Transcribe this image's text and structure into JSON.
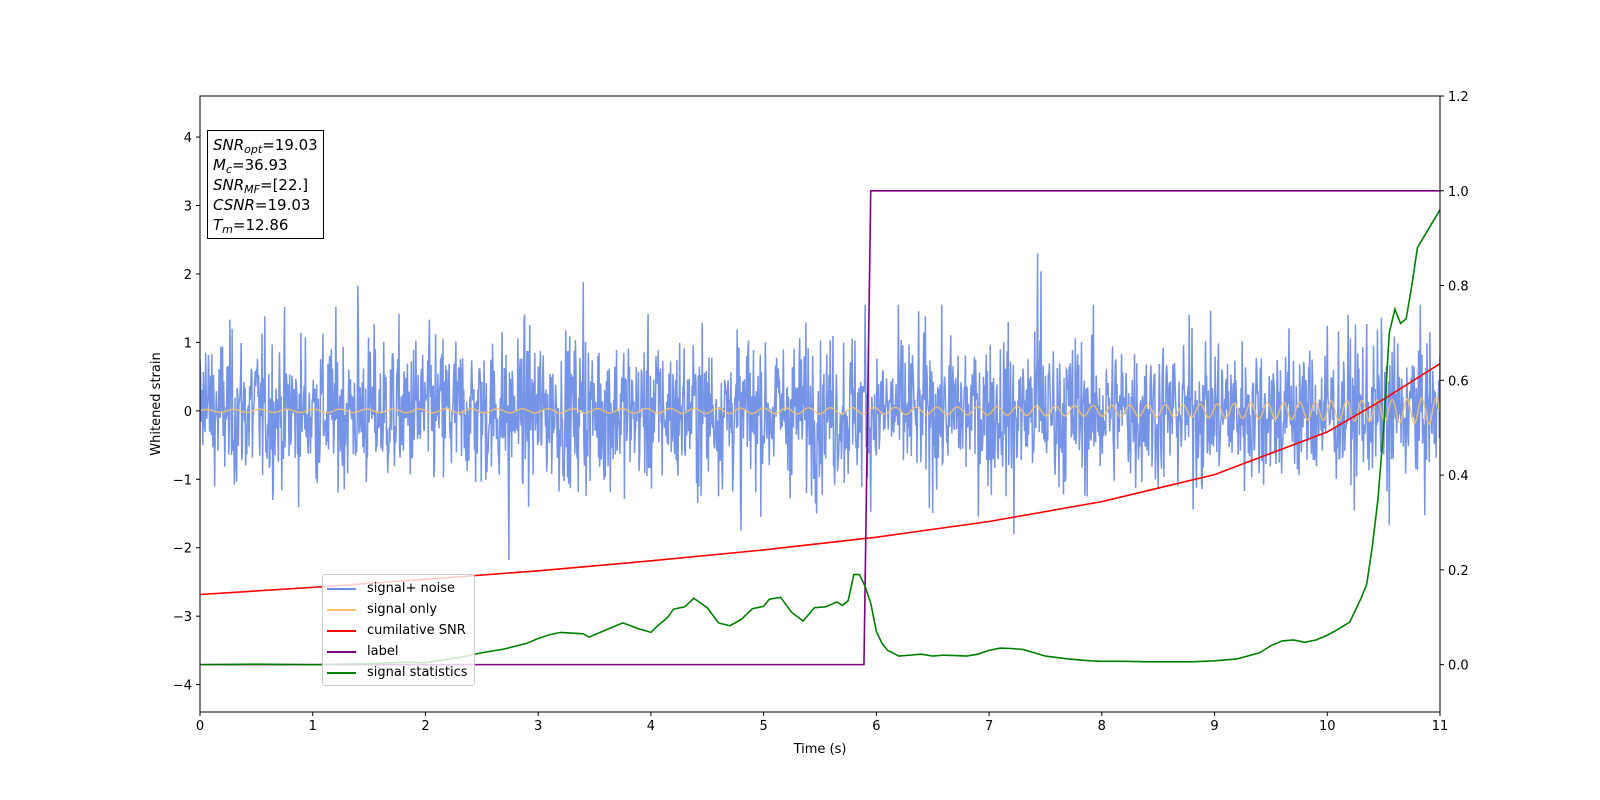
{
  "chart_data": {
    "type": "line",
    "xlabel": "Time (s)",
    "ylabel": "Whitened strain",
    "xlim": [
      0,
      11
    ],
    "ylim_left": [
      -4.4,
      4.6
    ],
    "ylim_right": [
      -0.1,
      1.2
    ],
    "x_ticks": [
      "0",
      "1",
      "2",
      "3",
      "4",
      "5",
      "6",
      "7",
      "8",
      "9",
      "10",
      "11"
    ],
    "y_ticks_left": [
      "−4",
      "−3",
      "−2",
      "−1",
      "0",
      "1",
      "2",
      "3",
      "4"
    ],
    "y_ticks_right": [
      "0.0",
      "0.2",
      "0.4",
      "0.6",
      "0.8",
      "1.0",
      "1.2"
    ],
    "y_tick_values_left": [
      -4,
      -3,
      -2,
      -1,
      0,
      1,
      2,
      3,
      4
    ],
    "y_tick_values_right": [
      0.0,
      0.2,
      0.4,
      0.6,
      0.8,
      1.0,
      1.2
    ],
    "annotations": {
      "snr_opt": "19.03",
      "mc": "36.93",
      "snr_mf": "[22.]",
      "csnr": "19.03",
      "tm": "12.86"
    },
    "series": [
      {
        "name": "signal+ noise",
        "color": "#6f8ee6",
        "axis": "left",
        "description_values": {
          "noise_std_approx": 0.55,
          "range": [
            -2.2,
            2.3
          ]
        },
        "extreme_points": [
          [
            0.05,
            0.85
          ],
          [
            1.4,
            1.83
          ],
          [
            2.74,
            -2.18
          ],
          [
            3.4,
            1.88
          ],
          [
            4.8,
            -1.75
          ],
          [
            5.9,
            1.55
          ],
          [
            7.43,
            2.3
          ],
          [
            7.46,
            2.04
          ],
          [
            7.22,
            -1.8
          ],
          [
            10.55,
            -1.67
          ]
        ]
      },
      {
        "name": "signal only",
        "color": "#f5c26b",
        "axis": "left",
        "x": [
          0,
          1,
          2,
          3,
          4,
          5,
          6,
          7,
          8,
          9,
          9.5,
          10,
          10.5,
          11
        ],
        "amplitude": [
          0.02,
          0.025,
          0.028,
          0.03,
          0.035,
          0.04,
          0.05,
          0.06,
          0.08,
          0.1,
          0.12,
          0.14,
          0.16,
          0.2
        ]
      },
      {
        "name": "cumilative SNR",
        "color": "#ff0000",
        "axis": "right",
        "x": [
          0,
          1,
          2,
          3,
          4,
          5,
          6,
          7,
          8,
          9,
          10,
          10.5,
          11
        ],
        "y": [
          0.148,
          0.163,
          0.18,
          0.198,
          0.219,
          0.242,
          0.269,
          0.302,
          0.344,
          0.401,
          0.491,
          0.56,
          0.635
        ]
      },
      {
        "name": "label",
        "color": "#800080",
        "axis": "right",
        "x": [
          0,
          5.89,
          5.95,
          11
        ],
        "y": [
          0.0,
          0.0,
          1.0,
          1.0
        ]
      },
      {
        "name": "signal statistics",
        "color": "#008000",
        "axis": "right",
        "x": [
          0,
          0.5,
          1,
          1.5,
          1.8,
          2,
          2.3,
          2.5,
          2.7,
          2.9,
          3.0,
          3.1,
          3.2,
          3.4,
          3.45,
          3.6,
          3.75,
          3.9,
          4.0,
          4.05,
          4.15,
          4.2,
          4.3,
          4.38,
          4.5,
          4.6,
          4.7,
          4.8,
          4.9,
          5.0,
          5.05,
          5.15,
          5.25,
          5.35,
          5.45,
          5.55,
          5.65,
          5.7,
          5.75,
          5.8,
          5.85,
          5.9,
          5.95,
          6.0,
          6.05,
          6.1,
          6.2,
          6.3,
          6.4,
          6.5,
          6.6,
          6.7,
          6.8,
          6.9,
          7.0,
          7.1,
          7.2,
          7.3,
          7.4,
          7.5,
          7.7,
          7.9,
          8.0,
          8.2,
          8.4,
          8.6,
          8.8,
          9.0,
          9.2,
          9.4,
          9.5,
          9.6,
          9.7,
          9.8,
          9.9,
          10.0,
          10.1,
          10.2,
          10.3,
          10.35,
          10.4,
          10.45,
          10.5,
          10.55,
          10.6,
          10.65,
          10.7,
          10.75,
          10.8,
          10.9,
          11.0
        ],
        "y": [
          0.0,
          0.001,
          0.0,
          0.002,
          0.005,
          0.004,
          0.015,
          0.025,
          0.033,
          0.045,
          0.055,
          0.063,
          0.068,
          0.065,
          0.058,
          0.073,
          0.088,
          0.075,
          0.068,
          0.08,
          0.1,
          0.117,
          0.122,
          0.14,
          0.12,
          0.088,
          0.082,
          0.095,
          0.118,
          0.123,
          0.138,
          0.142,
          0.11,
          0.092,
          0.12,
          0.122,
          0.132,
          0.125,
          0.135,
          0.19,
          0.19,
          0.165,
          0.13,
          0.07,
          0.045,
          0.03,
          0.018,
          0.02,
          0.022,
          0.018,
          0.02,
          0.019,
          0.018,
          0.022,
          0.03,
          0.035,
          0.034,
          0.032,
          0.025,
          0.018,
          0.012,
          0.008,
          0.007,
          0.007,
          0.006,
          0.006,
          0.006,
          0.008,
          0.012,
          0.025,
          0.04,
          0.05,
          0.052,
          0.047,
          0.052,
          0.062,
          0.075,
          0.09,
          0.14,
          0.17,
          0.25,
          0.35,
          0.5,
          0.7,
          0.75,
          0.72,
          0.73,
          0.8,
          0.88,
          0.92,
          0.96
        ]
      }
    ]
  }
}
